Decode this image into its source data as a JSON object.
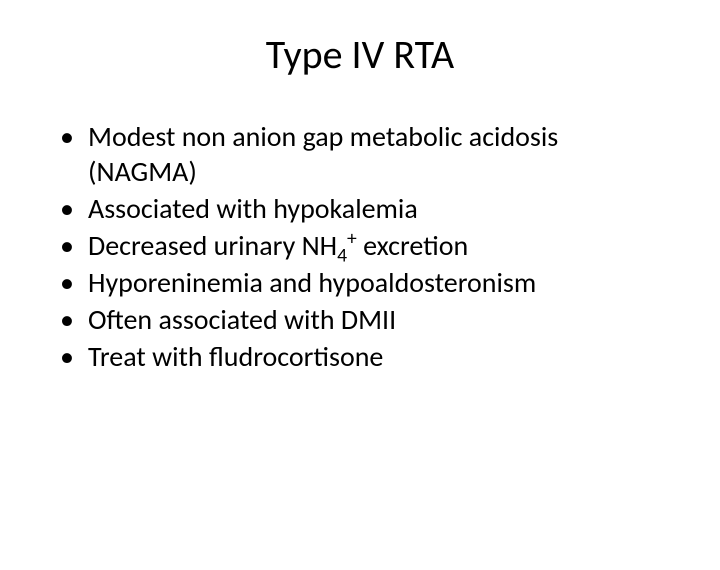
{
  "title": "Type IV RTA",
  "bullets": {
    "b0": "Modest non anion gap metabolic acidosis (NAGMA)",
    "b1": "Associated with hypokalemia",
    "b2_pre": "Decreased urinary NH",
    "b2_sub": "4",
    "b2_sup": "+",
    "b2_post": " excretion",
    "b3": "Hyporeninemia and hypoaldosteronism",
    "b4": "Often associated with DMII",
    "b5": "Treat with fludrocortisone"
  },
  "style": {
    "background_color": "#ffffff",
    "text_color": "#000000",
    "title_fontsize": 40,
    "body_fontsize": 28,
    "font_family": "Calibri"
  }
}
